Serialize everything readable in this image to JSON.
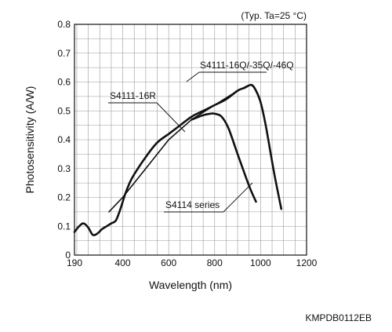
{
  "chart_data": {
    "type": "line",
    "xlabel": "Wavelength (nm)",
    "ylabel": "Photosensitivity (A/W)",
    "xlim": [
      190,
      1200
    ],
    "ylim": [
      0,
      0.8
    ],
    "x_ticks": [
      190,
      400,
      600,
      800,
      1000,
      1200
    ],
    "x_tick_labels": [
      "190",
      "400",
      "600",
      "800",
      "1000",
      "1200"
    ],
    "y_ticks": [
      0,
      0.1,
      0.2,
      0.3,
      0.4,
      0.5,
      0.6,
      0.7,
      0.8
    ],
    "y_tick_labels": [
      "0",
      "0.1",
      "0.2",
      "0.3",
      "0.4",
      "0.5",
      "0.6",
      "0.7",
      "0.8"
    ],
    "grid": true,
    "annotation": "(Typ. Ta=25 °C)",
    "series": [
      {
        "name": "S4111-16Q/-35Q/-46Q",
        "x": [
          190,
          210,
          230,
          250,
          270,
          290,
          310,
          330,
          350,
          370,
          390,
          410,
          430,
          450,
          500,
          550,
          600,
          650,
          700,
          750,
          800,
          850,
          900,
          930,
          960,
          980,
          1000,
          1020,
          1040,
          1060,
          1080,
          1090
        ],
        "y": [
          0.08,
          0.1,
          0.11,
          0.095,
          0.07,
          0.075,
          0.09,
          0.1,
          0.11,
          0.12,
          0.16,
          0.21,
          0.25,
          0.28,
          0.34,
          0.39,
          0.42,
          0.45,
          0.48,
          0.5,
          0.52,
          0.54,
          0.57,
          0.58,
          0.59,
          0.57,
          0.53,
          0.46,
          0.37,
          0.28,
          0.2,
          0.16
        ]
      },
      {
        "name": "S4111-16R",
        "x": [
          340,
          400,
          500,
          600,
          700,
          800,
          900,
          950
        ],
        "y": [
          0.15,
          0.2,
          0.3,
          0.4,
          0.47,
          0.52,
          0.57,
          0.59
        ]
      },
      {
        "name": "S4114 series",
        "x": [
          700,
          750,
          780,
          800,
          830,
          860,
          900,
          950,
          980
        ],
        "y": [
          0.47,
          0.485,
          0.49,
          0.49,
          0.48,
          0.44,
          0.35,
          0.24,
          0.185
        ]
      }
    ],
    "callouts": [
      {
        "text": "S4111-16Q/-35Q/-46Q",
        "series": "S4111-16Q/-35Q/-46Q"
      },
      {
        "text": "S4111-16R",
        "series": "S4111-16R"
      },
      {
        "text": "S4114 series",
        "series": "S4114 series"
      }
    ]
  },
  "footer_code": "KMPDB0112EB"
}
